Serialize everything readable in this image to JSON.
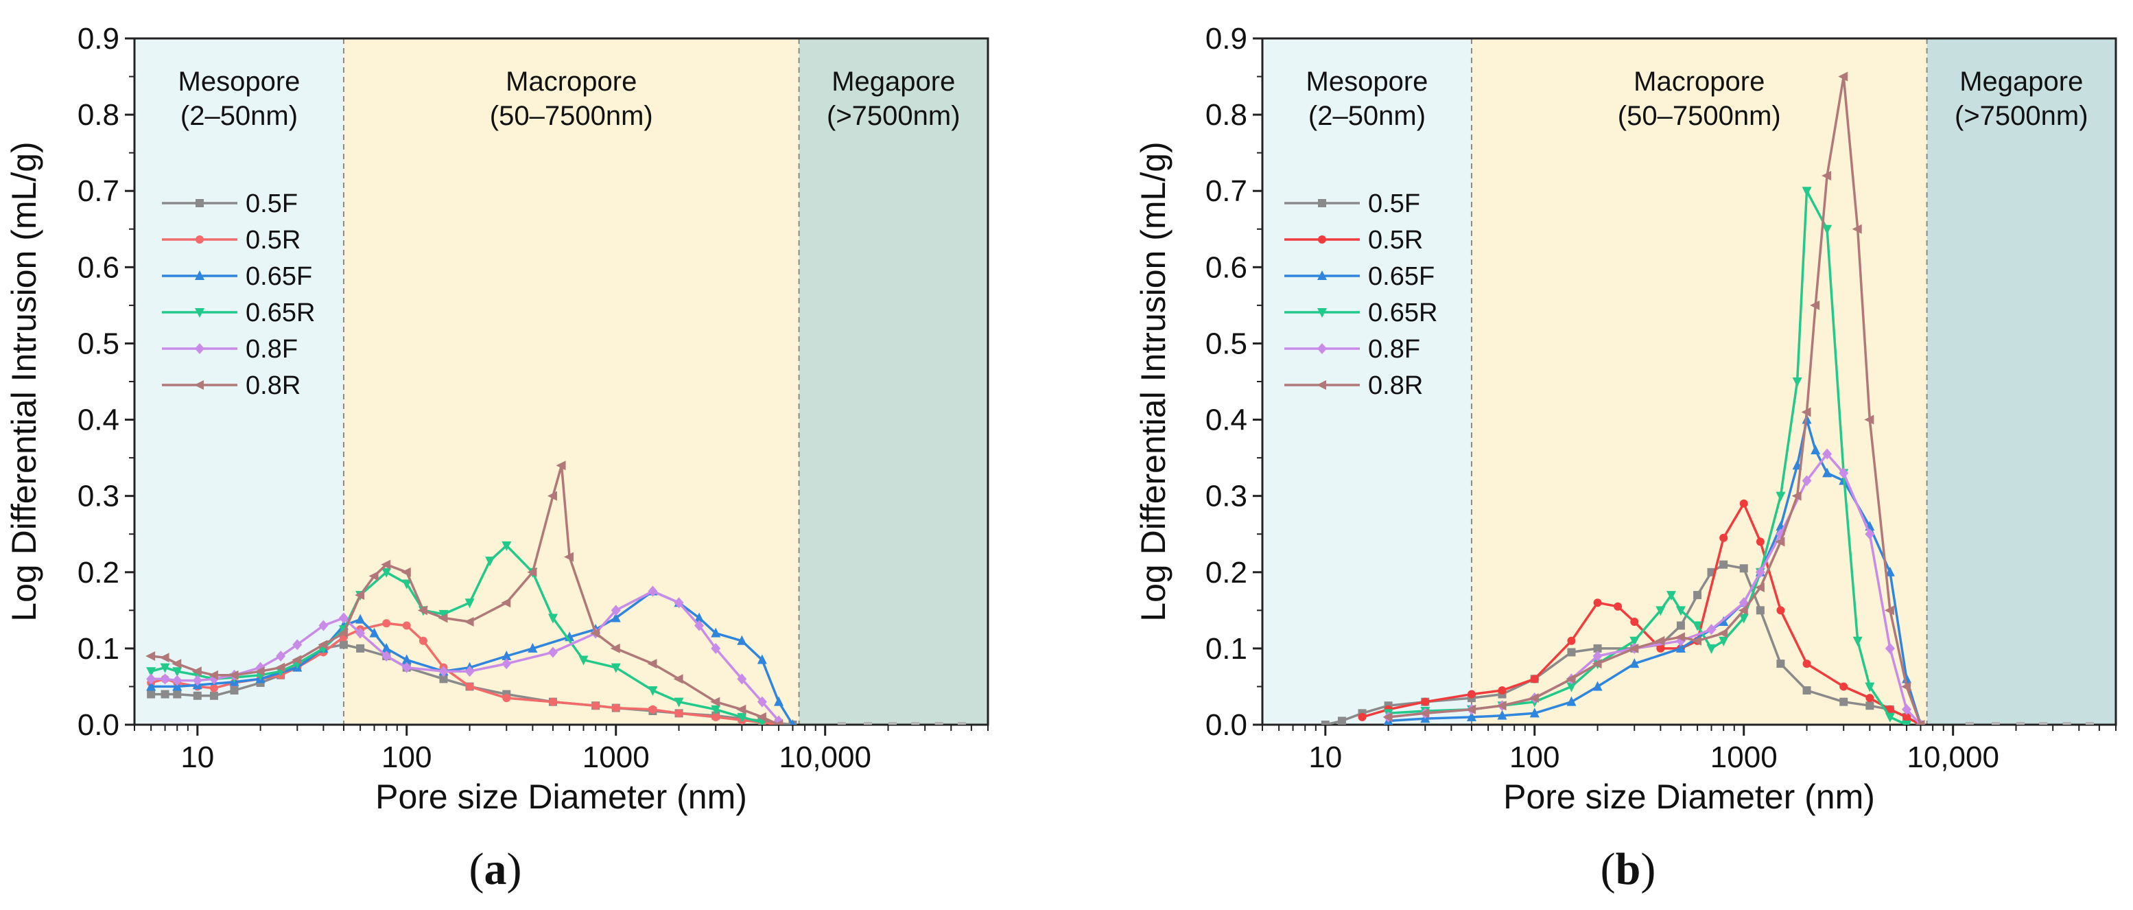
{
  "figure": {
    "panel_labels": [
      "(a)",
      "(b)"
    ]
  },
  "chart_data": [
    {
      "type": "line",
      "panel": "(a)",
      "xlabel": "Pore size Diameter (nm)",
      "ylabel": "Log Differential Intrusion (mL/g)",
      "xscale": "log",
      "xlim": [
        5,
        60000
      ],
      "ylim": [
        0,
        0.9
      ],
      "yticks": [
        "0.0",
        "0.1",
        "0.2",
        "0.3",
        "0.4",
        "0.5",
        "0.6",
        "0.7",
        "0.8",
        "0.9"
      ],
      "xticks": [
        {
          "value": 10,
          "label": "10"
        },
        {
          "value": 100,
          "label": "100"
        },
        {
          "value": 1000,
          "label": "1000"
        },
        {
          "value": 10000,
          "label": "10,000"
        }
      ],
      "regions": [
        {
          "name": "Mesopore",
          "range_label": "(2–50nm)",
          "from": 5,
          "to": 50,
          "color": "#e9f6f8"
        },
        {
          "name": "Macropore",
          "range_label": "(50–7500nm)",
          "from": 50,
          "to": 7500,
          "color": "#fdf3d6"
        },
        {
          "name": "Megapore",
          "range_label": "(>7500nm)",
          "from": 7500,
          "to": 60000,
          "color": "#cadfd8"
        }
      ],
      "legend_position": "left-upper",
      "series": [
        {
          "name": "0.5F",
          "color": "#8a8a8a",
          "marker": "square",
          "x": [
            6,
            7,
            8,
            10,
            12,
            15,
            20,
            25,
            30,
            40,
            50,
            60,
            80,
            100,
            150,
            200,
            300,
            500,
            800,
            1000,
            1500,
            2000,
            3000,
            4000,
            5000,
            6000,
            7000
          ],
          "y": [
            0.04,
            0.04,
            0.04,
            0.038,
            0.038,
            0.045,
            0.055,
            0.065,
            0.08,
            0.1,
            0.105,
            0.1,
            0.09,
            0.075,
            0.06,
            0.05,
            0.04,
            0.03,
            0.025,
            0.022,
            0.018,
            0.015,
            0.012,
            0.008,
            0.005,
            0.002,
            0.0
          ]
        },
        {
          "name": "0.5R",
          "color": "#f36a6a",
          "marker": "circle",
          "x": [
            6,
            7,
            8,
            10,
            12,
            15,
            20,
            25,
            30,
            40,
            50,
            60,
            80,
            100,
            120,
            150,
            200,
            300,
            500,
            800,
            1000,
            1500,
            2000,
            3000,
            4000,
            5000,
            6000
          ],
          "y": [
            0.055,
            0.06,
            0.055,
            0.05,
            0.048,
            0.055,
            0.06,
            0.065,
            0.075,
            0.095,
            0.115,
            0.125,
            0.133,
            0.13,
            0.11,
            0.075,
            0.05,
            0.035,
            0.03,
            0.025,
            0.022,
            0.02,
            0.015,
            0.01,
            0.006,
            0.003,
            0.0
          ]
        },
        {
          "name": "0.65F",
          "color": "#2f86dc",
          "marker": "triangle-up",
          "x": [
            6,
            8,
            10,
            15,
            20,
            30,
            40,
            50,
            60,
            70,
            80,
            100,
            150,
            200,
            300,
            400,
            600,
            800,
            1000,
            1500,
            2000,
            2500,
            3000,
            4000,
            5000,
            6000,
            7000
          ],
          "y": [
            0.05,
            0.05,
            0.052,
            0.056,
            0.06,
            0.075,
            0.1,
            0.13,
            0.138,
            0.12,
            0.1,
            0.085,
            0.07,
            0.075,
            0.09,
            0.1,
            0.115,
            0.125,
            0.14,
            0.175,
            0.16,
            0.14,
            0.12,
            0.11,
            0.085,
            0.03,
            0.0
          ]
        },
        {
          "name": "0.65R",
          "color": "#21c98a",
          "marker": "triangle-down",
          "x": [
            6,
            7,
            8,
            10,
            12,
            15,
            20,
            25,
            30,
            40,
            50,
            60,
            80,
            100,
            120,
            150,
            200,
            250,
            300,
            400,
            500,
            700,
            1000,
            1500,
            2000,
            3000,
            4000,
            5000
          ],
          "y": [
            0.07,
            0.075,
            0.07,
            0.065,
            0.06,
            0.062,
            0.065,
            0.07,
            0.08,
            0.1,
            0.125,
            0.17,
            0.2,
            0.185,
            0.15,
            0.145,
            0.16,
            0.215,
            0.235,
            0.2,
            0.14,
            0.085,
            0.075,
            0.045,
            0.03,
            0.02,
            0.01,
            0.003
          ]
        },
        {
          "name": "0.8F",
          "color": "#c98be8",
          "marker": "diamond",
          "x": [
            6,
            7,
            8,
            10,
            12,
            15,
            20,
            25,
            30,
            40,
            50,
            60,
            80,
            100,
            150,
            200,
            300,
            500,
            800,
            1000,
            1500,
            2000,
            2500,
            3000,
            4000,
            5000,
            6000
          ],
          "y": [
            0.06,
            0.06,
            0.058,
            0.058,
            0.06,
            0.065,
            0.075,
            0.09,
            0.105,
            0.13,
            0.14,
            0.12,
            0.09,
            0.075,
            0.07,
            0.07,
            0.08,
            0.095,
            0.12,
            0.15,
            0.175,
            0.16,
            0.13,
            0.1,
            0.06,
            0.03,
            0.005
          ]
        },
        {
          "name": "0.8R",
          "color": "#b07878",
          "marker": "triangle-left",
          "x": [
            6,
            7,
            8,
            10,
            12,
            15,
            20,
            25,
            30,
            40,
            50,
            60,
            70,
            80,
            100,
            120,
            150,
            200,
            300,
            400,
            500,
            550,
            600,
            800,
            1000,
            1500,
            2000,
            3000,
            4000,
            5000,
            6000
          ],
          "y": [
            0.09,
            0.088,
            0.08,
            0.07,
            0.065,
            0.065,
            0.07,
            0.075,
            0.085,
            0.105,
            0.12,
            0.17,
            0.195,
            0.21,
            0.2,
            0.15,
            0.14,
            0.135,
            0.16,
            0.2,
            0.3,
            0.34,
            0.22,
            0.12,
            0.1,
            0.08,
            0.06,
            0.03,
            0.02,
            0.01,
            0.0
          ]
        }
      ]
    },
    {
      "type": "line",
      "panel": "(b)",
      "xlabel": "Pore size Diameter (nm)",
      "ylabel": "Log Differential Intrusion (mL/g)",
      "xscale": "log",
      "xlim": [
        5,
        60000
      ],
      "ylim": [
        0,
        0.9
      ],
      "yticks": [
        "0.0",
        "0.1",
        "0.2",
        "0.3",
        "0.4",
        "0.5",
        "0.6",
        "0.7",
        "0.8",
        "0.9"
      ],
      "xticks": [
        {
          "value": 10,
          "label": "10"
        },
        {
          "value": 100,
          "label": "100"
        },
        {
          "value": 1000,
          "label": "1000"
        },
        {
          "value": 10000,
          "label": "10,000"
        }
      ],
      "regions": [
        {
          "name": "Mesopore",
          "range_label": "(2–50nm)",
          "from": 5,
          "to": 50,
          "color": "#e9f6f8"
        },
        {
          "name": "Macropore",
          "range_label": "(50–7500nm)",
          "from": 50,
          "to": 7500,
          "color": "#fdf3d6"
        },
        {
          "name": "Megapore",
          "range_label": "(>7500nm)",
          "from": 7500,
          "to": 60000,
          "color": "#c7e0df"
        }
      ],
      "legend_position": "left-upper",
      "series": [
        {
          "name": "0.5F",
          "color": "#8a8a8a",
          "marker": "square",
          "x": [
            10,
            12,
            15,
            20,
            30,
            50,
            70,
            100,
            150,
            200,
            300,
            400,
            500,
            600,
            700,
            800,
            1000,
            1200,
            1500,
            2000,
            3000,
            4000,
            5000,
            6000,
            7000
          ],
          "y": [
            0.0,
            0.005,
            0.015,
            0.025,
            0.03,
            0.035,
            0.04,
            0.06,
            0.095,
            0.1,
            0.1,
            0.105,
            0.13,
            0.17,
            0.2,
            0.21,
            0.205,
            0.15,
            0.08,
            0.045,
            0.03,
            0.025,
            0.02,
            0.01,
            0.0
          ]
        },
        {
          "name": "0.5R",
          "color": "#f03c3c",
          "marker": "circle",
          "x": [
            15,
            20,
            30,
            50,
            70,
            100,
            150,
            200,
            250,
            300,
            400,
            500,
            600,
            800,
            1000,
            1200,
            1500,
            2000,
            3000,
            4000,
            5000,
            6000,
            7000
          ],
          "y": [
            0.01,
            0.02,
            0.03,
            0.04,
            0.045,
            0.06,
            0.11,
            0.16,
            0.155,
            0.135,
            0.1,
            0.1,
            0.11,
            0.245,
            0.29,
            0.24,
            0.15,
            0.08,
            0.05,
            0.035,
            0.02,
            0.01,
            0.0
          ]
        },
        {
          "name": "0.65F",
          "color": "#2f86dc",
          "marker": "triangle-up",
          "x": [
            20,
            30,
            50,
            70,
            100,
            150,
            200,
            300,
            500,
            800,
            1000,
            1200,
            1500,
            1800,
            2000,
            2200,
            2500,
            3000,
            4000,
            5000,
            6000,
            7000
          ],
          "y": [
            0.005,
            0.008,
            0.01,
            0.012,
            0.015,
            0.03,
            0.05,
            0.08,
            0.1,
            0.135,
            0.16,
            0.2,
            0.26,
            0.34,
            0.4,
            0.36,
            0.33,
            0.32,
            0.26,
            0.2,
            0.06,
            0.0
          ]
        },
        {
          "name": "0.65R",
          "color": "#21c98a",
          "marker": "triangle-down",
          "x": [
            20,
            30,
            50,
            70,
            100,
            150,
            200,
            300,
            400,
            450,
            500,
            600,
            700,
            800,
            1000,
            1200,
            1500,
            1800,
            2000,
            2500,
            3000,
            3500,
            4000,
            5000,
            6000
          ],
          "y": [
            0.015,
            0.018,
            0.02,
            0.025,
            0.03,
            0.05,
            0.08,
            0.11,
            0.15,
            0.17,
            0.15,
            0.13,
            0.1,
            0.11,
            0.14,
            0.2,
            0.3,
            0.45,
            0.7,
            0.65,
            0.33,
            0.11,
            0.05,
            0.01,
            0.0
          ]
        },
        {
          "name": "0.8F",
          "color": "#c98be8",
          "marker": "diamond",
          "x": [
            20,
            30,
            50,
            70,
            100,
            150,
            200,
            300,
            500,
            700,
            1000,
            1200,
            1500,
            2000,
            2500,
            3000,
            4000,
            5000,
            6000,
            7000
          ],
          "y": [
            0.01,
            0.015,
            0.02,
            0.025,
            0.035,
            0.06,
            0.09,
            0.1,
            0.11,
            0.125,
            0.16,
            0.2,
            0.25,
            0.32,
            0.355,
            0.33,
            0.25,
            0.1,
            0.02,
            0.0
          ]
        },
        {
          "name": "0.8R",
          "color": "#b07878",
          "marker": "triangle-left",
          "x": [
            20,
            30,
            50,
            70,
            100,
            150,
            200,
            300,
            400,
            500,
            600,
            800,
            1000,
            1200,
            1500,
            1800,
            2000,
            2200,
            2500,
            3000,
            3500,
            4000,
            5000,
            6000,
            7000
          ],
          "y": [
            0.01,
            0.015,
            0.02,
            0.025,
            0.035,
            0.06,
            0.08,
            0.1,
            0.11,
            0.115,
            0.11,
            0.12,
            0.15,
            0.18,
            0.24,
            0.3,
            0.41,
            0.55,
            0.72,
            0.85,
            0.65,
            0.4,
            0.15,
            0.05,
            0.0
          ]
        }
      ]
    }
  ]
}
